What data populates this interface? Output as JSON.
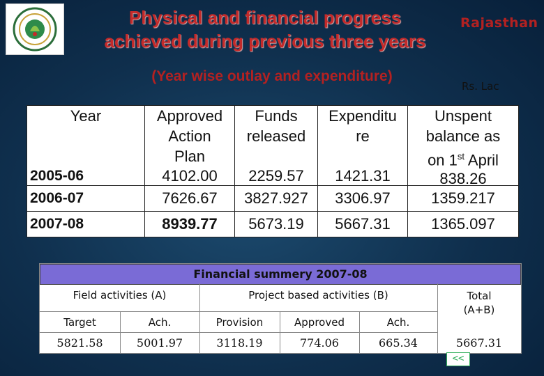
{
  "header": {
    "title_line1": "Physical and financial progress",
    "title_line2": "achieved during previous three years",
    "state": "Rajasthan",
    "subtitle": "(Year wise outlay and expenditure)",
    "unit": "Rs. Lac"
  },
  "progress_table": {
    "headers": {
      "year": "Year",
      "plan": [
        "Approved",
        "Action",
        "Plan"
      ],
      "released": [
        "Funds",
        "released"
      ],
      "expenditure": [
        "Expenditu",
        "re"
      ],
      "unspent": [
        "Unspent",
        "balance as",
        "on 1",
        "st",
        " April"
      ]
    },
    "rows": [
      {
        "year": "2005-06",
        "plan": "4102.00",
        "released": "2259.57",
        "expenditure": "1421.31",
        "unspent": "838.26"
      },
      {
        "year": "2006-07",
        "plan": "7626.67",
        "released": "3827.927",
        "expenditure": "3306.97",
        "unspent": "1359.217"
      },
      {
        "year": "2007-08",
        "plan": "8939.77",
        "released": "5673.19",
        "expenditure": "5667.31",
        "unspent": "1365.097"
      }
    ]
  },
  "financial_summary": {
    "title": "Financial summery 2007-08",
    "field_activities": "Field activities (A)",
    "project_activities": "Project based activities (B)",
    "total": [
      "Total",
      "(A+B)"
    ],
    "sub_headers": {
      "target": "Target",
      "ach_a": "Ach.",
      "provision": "Provision",
      "approved": "Approved",
      "ach_b": "Ach."
    },
    "values": {
      "target": "5821.58",
      "ach_a": "5001.97",
      "provision": "3118.19",
      "approved": "774.06",
      "ach_b": "665.34",
      "total": "5667.31"
    }
  },
  "nav": {
    "back_label": "<<"
  }
}
